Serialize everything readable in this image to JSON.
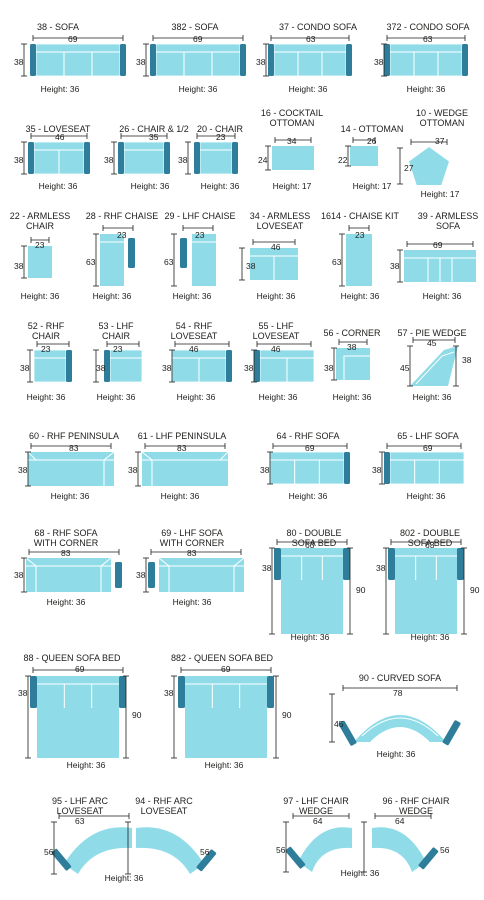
{
  "colors": {
    "seat": "#8fdce8",
    "arm": "#2e7e9b",
    "line": "#1d1d1b",
    "text": "#1d1d1b"
  },
  "items": [
    {
      "id": "sofa-38",
      "title": [
        "38 - SOFA"
      ],
      "width": "69",
      "depth": "38",
      "height": "Height: 36"
    },
    {
      "id": "sofa-382",
      "title": [
        "382 - SOFA"
      ],
      "width": "69",
      "depth": "38",
      "height": "Height: 36"
    },
    {
      "id": "condo-sofa-37",
      "title": [
        "37 - CONDO SOFA"
      ],
      "width": "63",
      "depth": "38",
      "height": "Height: 36"
    },
    {
      "id": "condo-sofa-372",
      "title": [
        "372 - CONDO SOFA"
      ],
      "width": "63",
      "depth": "38",
      "height": "Height: 36"
    },
    {
      "id": "loveseat-35",
      "title": [
        "35 - LOVESEAT"
      ],
      "width": "46",
      "depth": "38",
      "height": "Height: 36"
    },
    {
      "id": "chair-half-26",
      "title": [
        "26 - CHAIR & 1/2"
      ],
      "width": "35",
      "depth": "38",
      "height": "Height: 36"
    },
    {
      "id": "chair-20",
      "title": [
        "20 - CHAIR"
      ],
      "width": "23",
      "depth": "38",
      "height": "Height: 36"
    },
    {
      "id": "cocktail-ottoman-16",
      "title": [
        "16 - COCKTAIL",
        "OTTOMAN"
      ],
      "width": "34",
      "depth": "24",
      "height": "Height: 17"
    },
    {
      "id": "ottoman-14",
      "title": [
        "14 - OTTOMAN"
      ],
      "width": "26",
      "depth": "22",
      "height": "Height: 17"
    },
    {
      "id": "wedge-ottoman-10",
      "title": [
        "10 - WEDGE",
        "OTTOMAN"
      ],
      "width": "37",
      "depth": "27",
      "height": "Height: 17"
    },
    {
      "id": "armless-chair-22",
      "title": [
        "22 - ARMLESS",
        "CHAIR"
      ],
      "width": "23",
      "depth": "38",
      "height": "Height: 36"
    },
    {
      "id": "rhf-chaise-28",
      "title": [
        "28 - RHF CHAISE"
      ],
      "width": "23",
      "depth": "63",
      "height": "Height: 36"
    },
    {
      "id": "lhf-chaise-29",
      "title": [
        "29 - LHF CHAISE"
      ],
      "width": "23",
      "depth": "63",
      "height": "Height: 36"
    },
    {
      "id": "armless-loveseat-34",
      "title": [
        "34 - ARMLESS",
        "LOVESEAT"
      ],
      "width": "46",
      "depth": "38",
      "height": "Height: 36"
    },
    {
      "id": "chaise-kit-1614",
      "title": [
        "1614 - CHAISE KIT"
      ],
      "width": "23",
      "depth": "63",
      "height": "Height: 36"
    },
    {
      "id": "armless-sofa-39",
      "title": [
        "39 - ARMLESS",
        "SOFA"
      ],
      "width": "69",
      "depth": "38",
      "height": "Height: 36"
    },
    {
      "id": "rhf-chair-52",
      "title": [
        "52 - RHF",
        "CHAIR"
      ],
      "width": "23",
      "depth": "38",
      "height": "Height: 36"
    },
    {
      "id": "lhf-chair-53",
      "title": [
        "53 - LHF",
        "CHAIR"
      ],
      "width": "23",
      "depth": "38",
      "height": "Height: 36"
    },
    {
      "id": "rhf-loveseat-54",
      "title": [
        "54 - RHF",
        "LOVESEAT"
      ],
      "width": "46",
      "depth": "38",
      "height": "Height: 36"
    },
    {
      "id": "lhf-loveseat-55",
      "title": [
        "55 - LHF",
        "LOVESEAT"
      ],
      "width": "46",
      "depth": "38",
      "height": "Height: 36"
    },
    {
      "id": "corner-56",
      "title": [
        "56 - CORNER"
      ],
      "width": "38",
      "depth": "38",
      "height": "Height: 36"
    },
    {
      "id": "pie-wedge-57",
      "title": [
        "57 - PIE WEDGE"
      ],
      "width": "45",
      "depth": "45",
      "depth2": "38",
      "height": "Height: 36"
    },
    {
      "id": "rhf-peninsula-60",
      "title": [
        "60 - RHF PENINSULA"
      ],
      "width": "83",
      "depth": "38",
      "height": "Height: 36"
    },
    {
      "id": "lhf-peninsula-61",
      "title": [
        "61 - LHF PENINSULA"
      ],
      "width": "83",
      "depth": "38",
      "height": "Height: 36"
    },
    {
      "id": "rhf-sofa-64",
      "title": [
        "64 - RHF SOFA"
      ],
      "width": "69",
      "depth": "38",
      "height": "Height: 36"
    },
    {
      "id": "lhf-sofa-65",
      "title": [
        "65 - LHF SOFA"
      ],
      "width": "69",
      "depth": "38",
      "height": "Height: 36"
    },
    {
      "id": "rhf-sofa-corner-68",
      "title": [
        "68 - RHF SOFA",
        "WITH CORNER"
      ],
      "width": "83",
      "depth": "38",
      "height": "Height: 36"
    },
    {
      "id": "lhf-sofa-corner-69",
      "title": [
        "69 - LHF SOFA",
        "WITH CORNER"
      ],
      "width": "83",
      "depth": "38",
      "height": "Height: 36"
    },
    {
      "id": "double-sofa-bed-80",
      "title": [
        "80 - DOUBLE",
        "SOFA BED"
      ],
      "width": "63",
      "depth": "38",
      "depth2": "90",
      "height": "Height: 36"
    },
    {
      "id": "double-sofa-bed-802",
      "title": [
        "802 - DOUBLE",
        "SOFA BED"
      ],
      "width": "63",
      "depth": "38",
      "depth2": "90",
      "height": "Height: 36"
    },
    {
      "id": "queen-sofa-bed-88",
      "title": [
        "88 - QUEEN SOFA BED"
      ],
      "width": "69",
      "depth": "38",
      "depth2": "90",
      "height": "Height: 36"
    },
    {
      "id": "queen-sofa-bed-882",
      "title": [
        "882 - QUEEN SOFA BED"
      ],
      "width": "69",
      "depth": "38",
      "depth2": "90",
      "height": "Height: 36"
    },
    {
      "id": "curved-sofa-90",
      "title": [
        "90 - CURVED SOFA"
      ],
      "width": "78",
      "depth": "45",
      "height": "Height: 36"
    },
    {
      "id": "lhf-arc-loveseat-95",
      "title": [
        "95 - LHF ARC",
        "LOVESEAT"
      ],
      "width": "63",
      "depth": "56",
      "height": ""
    },
    {
      "id": "rhf-arc-loveseat-94",
      "title": [
        "94 - RHF ARC",
        "LOVESEAT"
      ],
      "width": "",
      "depth": "56",
      "height": ""
    },
    {
      "id": "arc-loveseat-pair",
      "title": [],
      "width": "",
      "depth": "",
      "height": "Height: 36"
    },
    {
      "id": "lhf-chair-wedge-97",
      "title": [
        "97 - LHF CHAIR",
        "WEDGE"
      ],
      "width": "64",
      "depth": "56",
      "height": ""
    },
    {
      "id": "rhf-chair-wedge-96",
      "title": [
        "96 - RHF CHAIR",
        "WEDGE"
      ],
      "width": "64",
      "depth": "56",
      "height": ""
    },
    {
      "id": "chair-wedge-pair",
      "title": [],
      "width": "",
      "depth": "",
      "height": "Height: 36"
    }
  ]
}
